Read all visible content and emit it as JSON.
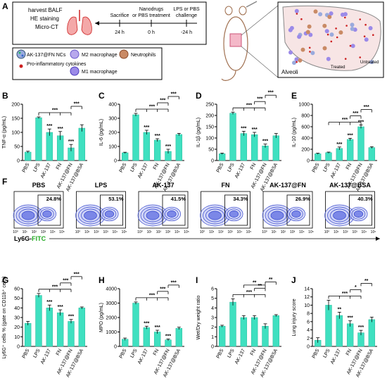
{
  "schematic": {
    "panel_label": "A",
    "timeline": {
      "left_box": [
        "harvest BALF",
        "HE staining",
        "Micro-CT"
      ],
      "events": [
        {
          "label": [
            "Sacrifice"
          ],
          "time": "24 h"
        },
        {
          "label": [
            "Nanodrugs",
            "or PBS treatment"
          ],
          "time": "0 h"
        },
        {
          "label": [
            "LPS or PBS",
            "challenge"
          ],
          "time": "-24 h"
        }
      ]
    },
    "legend": [
      {
        "icon": "nanocomposite-icon",
        "label": "AK-137@FN NCs"
      },
      {
        "icon": "m2-macrophage-icon",
        "label": "M2 macrophage"
      },
      {
        "icon": "neutrophil-icon",
        "label": "Neutrophils"
      },
      {
        "icon": "cytokine-dot-icon",
        "label": "Pro-inflammatory cytokines"
      },
      {
        "icon": "m1-macrophage-icon",
        "label": "M1 macrophage"
      }
    ],
    "alveoli": {
      "title": "Alveoli",
      "treated": "Treated",
      "untreated": "Untreated"
    }
  },
  "colors": {
    "bar": "#3fe0c0",
    "bar_stroke": "#2bb89c",
    "flow_line": "#3344cc",
    "flow_fill": "#c9cff5",
    "accent_green": "#22aa22"
  },
  "chart_data": [
    {
      "panel": "B",
      "type": "bar",
      "ylabel": "TNF-α (pg/mL)",
      "ylim": [
        0,
        200
      ],
      "yticks": [
        0,
        50,
        100,
        150,
        200
      ],
      "categories": [
        "PBS",
        "LPS",
        "AK-137",
        "FN",
        "AK-137@FN",
        "AK-137@BSA"
      ],
      "values": [
        30,
        152,
        100,
        88,
        45,
        115
      ],
      "errors": [
        3,
        3,
        12,
        15,
        12,
        12
      ],
      "stars": [
        "",
        "",
        "***",
        "***",
        "***",
        ""
      ],
      "brackets": [
        {
          "from": 1,
          "to": [
            2,
            3,
            4
          ],
          "text": "***",
          "level": 1
        },
        {
          "from": 4,
          "to": [
            5
          ],
          "text": "***",
          "level": 2
        }
      ]
    },
    {
      "panel": "C",
      "type": "bar",
      "ylabel": "IL-6 (pg/mL)",
      "ylim": [
        0,
        400
      ],
      "yticks": [
        0,
        100,
        200,
        300,
        400
      ],
      "categories": [
        "PBS",
        "LPS",
        "AK-137",
        "FN",
        "AK-137@FN",
        "AK-137@BSA"
      ],
      "values": [
        55,
        325,
        200,
        145,
        65,
        185
      ],
      "errors": [
        4,
        10,
        15,
        10,
        15,
        8
      ],
      "stars": [
        "",
        "",
        "***",
        "***",
        "***",
        ""
      ],
      "brackets": [
        {
          "from": 1,
          "to": [
            2,
            3,
            4
          ],
          "text": "***",
          "level": 1
        },
        {
          "from": 3,
          "to": [
            4
          ],
          "text": "***",
          "level": 2
        },
        {
          "from": 4,
          "to": [
            5
          ],
          "text": "***",
          "level": 3
        }
      ]
    },
    {
      "panel": "D",
      "type": "bar",
      "ylabel": "IL-1β (pg/mL)",
      "ylim": [
        0,
        250
      ],
      "yticks": [
        0,
        50,
        100,
        150,
        200,
        250
      ],
      "categories": [
        "PBS",
        "LPS",
        "AK-137",
        "FN",
        "AK-137@FN",
        "AK-137@BSA"
      ],
      "values": [
        30,
        210,
        120,
        115,
        65,
        110
      ],
      "errors": [
        3,
        5,
        10,
        10,
        8,
        10
      ],
      "stars": [
        "",
        "",
        "***",
        "***",
        "***",
        ""
      ],
      "brackets": [
        {
          "from": 1,
          "to": [
            2,
            3,
            4
          ],
          "text": "***",
          "level": 1
        },
        {
          "from": 3,
          "to": [
            4
          ],
          "text": "***",
          "level": 2
        },
        {
          "from": 4,
          "to": [
            5
          ],
          "text": "***",
          "level": 3
        }
      ]
    },
    {
      "panel": "E",
      "type": "bar",
      "ylabel": "IL-10 (pg/mL)",
      "ylim": [
        0,
        1000
      ],
      "yticks": [
        0,
        200,
        400,
        600,
        800,
        1000
      ],
      "categories": [
        "PBS",
        "LPS",
        "AK-137",
        "FN",
        "AK-137@FN",
        "AK-137@BSA"
      ],
      "values": [
        120,
        140,
        215,
        375,
        600,
        230
      ],
      "errors": [
        10,
        10,
        25,
        20,
        30,
        15
      ],
      "stars": [
        "",
        "",
        "***",
        "***",
        "***",
        ""
      ],
      "brackets": [
        {
          "from": 1,
          "to": [
            2,
            3,
            4
          ],
          "text": "***",
          "level": 1
        },
        {
          "from": 3,
          "to": [
            4
          ],
          "text": "***",
          "level": 2
        },
        {
          "from": 4,
          "to": [
            5
          ],
          "text": "***",
          "level": 3
        }
      ]
    },
    {
      "panel": "F",
      "type": "flow-cytometry",
      "xlabel_prefix": "Ly6G-",
      "xlabel_fitc": "FITC",
      "xticks": [
        "10⁰",
        "10¹",
        "10²",
        "10³",
        "10⁴",
        "10⁵"
      ],
      "plots": [
        {
          "title": "PBS",
          "gate": "24.8%"
        },
        {
          "title": "LPS",
          "gate": "53.1%"
        },
        {
          "title": "AK-137",
          "gate": "41.5%"
        },
        {
          "title": "FN",
          "gate": "34.3%"
        },
        {
          "title": "AK-137@FN",
          "gate": "26.9%"
        },
        {
          "title": "AK-137@BSA",
          "gate": "40.3%"
        }
      ]
    },
    {
      "panel": "G",
      "type": "bar",
      "ylabel": "Ly6G⁺ cells % (gate on CD11b⁺ cells)",
      "ylim": [
        0,
        60
      ],
      "yticks": [
        0,
        10,
        20,
        30,
        40,
        50,
        60
      ],
      "categories": [
        "PBS",
        "LPS",
        "AK-137",
        "FN",
        "AK-137@FN",
        "AK-137@BSA"
      ],
      "values": [
        24,
        53,
        40,
        35,
        26,
        40
      ],
      "errors": [
        2,
        2,
        3,
        3,
        2,
        1
      ],
      "stars": [
        "",
        "",
        "***",
        "***",
        "***",
        ""
      ],
      "brackets": [
        {
          "from": 1,
          "to": [
            2,
            3,
            4
          ],
          "text": "***",
          "level": 1
        },
        {
          "from": 3,
          "to": [
            4
          ],
          "text": "***",
          "level": 2
        },
        {
          "from": 4,
          "to": [
            5
          ],
          "text": "***",
          "level": 3
        }
      ]
    },
    {
      "panel": "H",
      "type": "bar",
      "ylabel": "MPO (pg/mL)",
      "ylim": [
        0,
        4000
      ],
      "yticks": [
        0,
        1000,
        2000,
        3000,
        4000
      ],
      "categories": [
        "PBS",
        "LPS",
        "AK-137",
        "FN",
        "AK-137@FN",
        "AK-137@BSA"
      ],
      "values": [
        500,
        3000,
        1300,
        1000,
        450,
        1250
      ],
      "errors": [
        80,
        80,
        100,
        120,
        60,
        80
      ],
      "stars": [
        "",
        "",
        "***",
        "***",
        "***",
        ""
      ],
      "brackets": [
        {
          "from": 1,
          "to": [
            2,
            3,
            4
          ],
          "text": "***",
          "level": 1
        },
        {
          "from": 3,
          "to": [
            4
          ],
          "text": "***",
          "level": 2
        },
        {
          "from": 4,
          "to": [
            5
          ],
          "text": "***",
          "level": 3
        }
      ]
    },
    {
      "panel": "I",
      "type": "bar",
      "ylabel": "Wet/Dry weight ratio",
      "ylim": [
        0,
        6
      ],
      "yticks": [
        0,
        1,
        2,
        3,
        4,
        5,
        6
      ],
      "categories": [
        "PBS",
        "LPS",
        "AK-137",
        "FN",
        "AK-137@FN",
        "AK-137@BSA"
      ],
      "values": [
        2.1,
        4.6,
        3.0,
        3.0,
        2.1,
        3.2
      ],
      "errors": [
        0.1,
        0.35,
        0.2,
        0.2,
        0.25,
        0.1
      ],
      "stars": [
        "",
        "",
        "",
        "",
        "",
        ""
      ],
      "brackets": [
        {
          "from": 1,
          "to": [
            2,
            3,
            4
          ],
          "text": "***",
          "level": 1
        },
        {
          "from": 3,
          "to": [
            4
          ],
          "text": "**",
          "level": 2
        },
        {
          "from": 4,
          "to": [
            5
          ],
          "text": "**",
          "level": 3
        },
        {
          "from": 2,
          "to": [
            4
          ],
          "text": "**",
          "level": 2.5
        }
      ]
    },
    {
      "panel": "J",
      "type": "bar",
      "ylabel": "Lung injury score",
      "ylim": [
        0,
        14
      ],
      "yticks": [
        0,
        2,
        4,
        6,
        8,
        10,
        12,
        14
      ],
      "categories": [
        "PBS",
        "LPS",
        "AK-137",
        "FN",
        "AK-137@FN",
        "AK-137@BSA"
      ],
      "values": [
        1.5,
        10,
        7.5,
        5.5,
        3.3,
        6.5
      ],
      "errors": [
        0.6,
        1.2,
        0.8,
        0.7,
        0.6,
        0.6
      ],
      "stars": [
        "",
        "",
        "**",
        "***",
        "***",
        ""
      ],
      "brackets": [
        {
          "from": 1,
          "to": [
            2,
            3,
            4
          ],
          "text": "***",
          "level": 1
        },
        {
          "from": 3,
          "to": [
            4
          ],
          "text": "*",
          "level": 2
        },
        {
          "from": 4,
          "to": [
            5
          ],
          "text": "**",
          "level": 3
        }
      ]
    }
  ]
}
